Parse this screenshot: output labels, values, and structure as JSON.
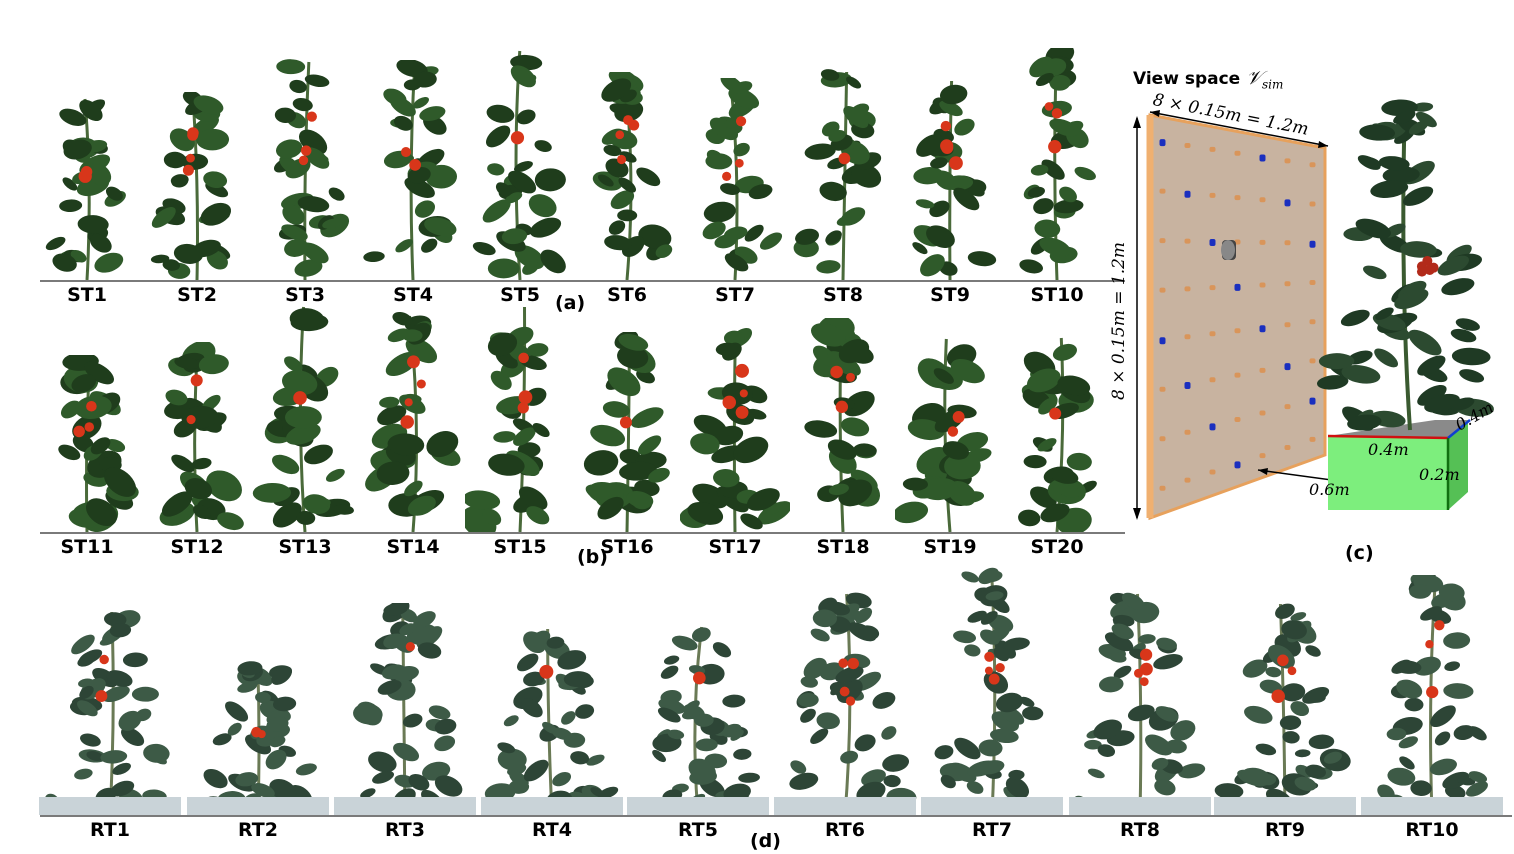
{
  "panels": {
    "a": "(a)",
    "b": "(b)",
    "c": "(c)",
    "d": "(d)"
  },
  "row_a": {
    "labels": [
      "ST1",
      "ST2",
      "ST3",
      "ST4",
      "ST5",
      "ST6",
      "ST7",
      "ST8",
      "ST9",
      "ST10"
    ]
  },
  "row_b": {
    "labels": [
      "ST11",
      "ST12",
      "ST13",
      "ST14",
      "ST15",
      "ST16",
      "ST17",
      "ST18",
      "ST19",
      "ST20"
    ]
  },
  "row_d": {
    "labels": [
      "RT1",
      "RT2",
      "RT3",
      "RT4",
      "RT5",
      "RT6",
      "RT7",
      "RT8",
      "RT9",
      "RT10"
    ]
  },
  "view_space": {
    "title": "View space",
    "symbol": "𝒱",
    "symbol_sub": "sim",
    "width_label": "8 × 0.15m = 1.2m",
    "height_label": "8 × 0.15m = 1.2m",
    "dist_label": "0.6m",
    "box_x_label": "0.4m",
    "box_y_label": "0.4m",
    "box_z_label": "0.2m"
  },
  "colors": {
    "leaf": "#2f5a2a",
    "leaf_dark": "#1f3d1c",
    "fruit": "#d8361a",
    "panel_fill": "#c8b3a0",
    "box": "#7dee7d"
  }
}
